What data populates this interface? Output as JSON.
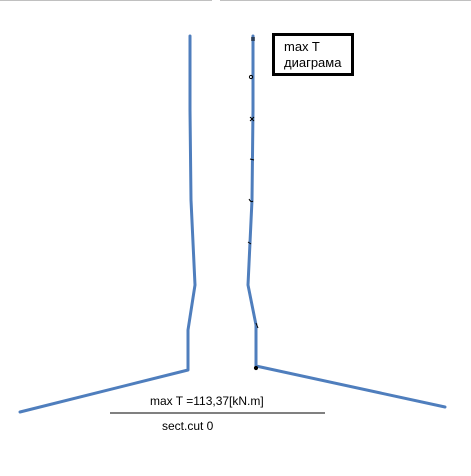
{
  "legend": {
    "line1": "max T",
    "line2": "диаграма"
  },
  "caption": {
    "value_text": "max T =113,37[kN.m]",
    "section_text": "sect.cut 0"
  },
  "colors": {
    "outline": "#4f7ebd",
    "text": "#000000",
    "rule": "#000000",
    "top_border": "#c0c0c0"
  }
}
